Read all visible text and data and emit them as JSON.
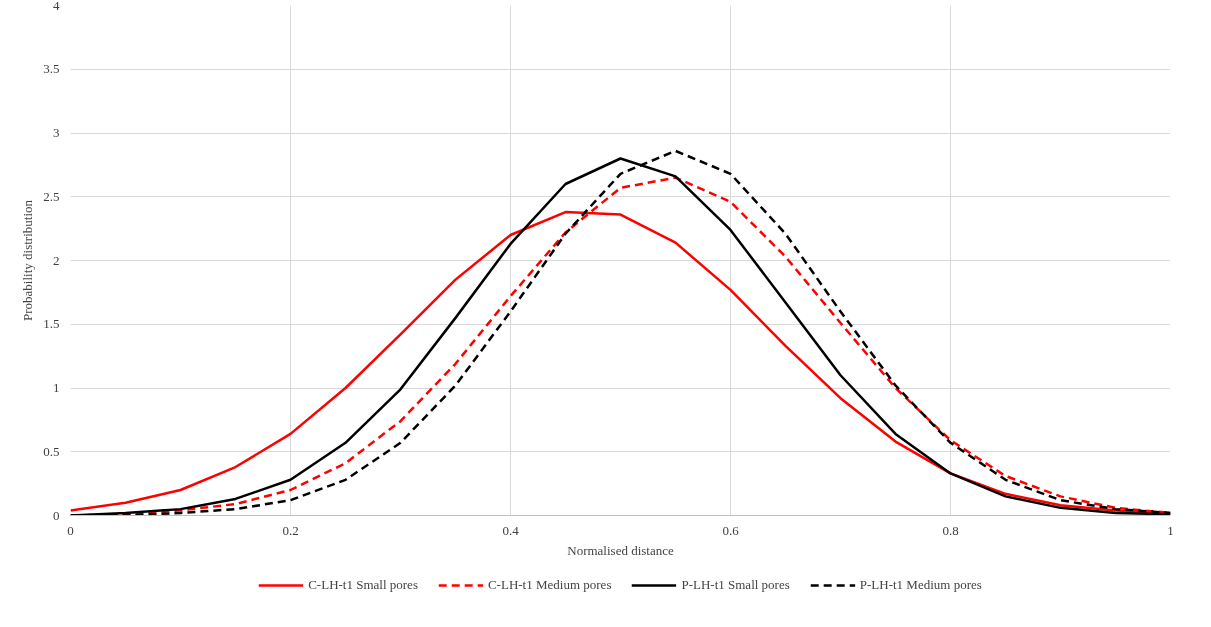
{
  "chart_data": {
    "type": "line",
    "xlabel": "Normalised distance",
    "ylabel": "Probability distribution",
    "x": [
      0,
      0.05,
      0.1,
      0.15,
      0.2,
      0.25,
      0.3,
      0.35,
      0.4,
      0.45,
      0.5,
      0.55,
      0.6,
      0.65,
      0.7,
      0.75,
      0.8,
      0.85,
      0.9,
      0.95,
      1
    ],
    "series": [
      {
        "name": "C-LH-t1 Small pores",
        "color": "#ff0000",
        "line_style": "solid",
        "values": [
          0.04,
          0.1,
          0.2,
          0.38,
          0.64,
          1.0,
          1.42,
          1.85,
          2.2,
          2.38,
          2.36,
          2.14,
          1.77,
          1.33,
          0.92,
          0.58,
          0.33,
          0.17,
          0.08,
          0.04,
          0.02
        ]
      },
      {
        "name": "C-LH-t1 Medium pores",
        "color": "#ff0000",
        "line_style": "dashed",
        "values": [
          0,
          0.01,
          0.04,
          0.09,
          0.2,
          0.41,
          0.74,
          1.19,
          1.72,
          2.22,
          2.57,
          2.65,
          2.46,
          2.03,
          1.51,
          1.0,
          0.59,
          0.31,
          0.15,
          0.06,
          0.02
        ]
      },
      {
        "name": "P-LH-t1 Small pores",
        "color": "#000000",
        "line_style": "solid",
        "values": [
          0,
          0.02,
          0.05,
          0.13,
          0.28,
          0.57,
          0.99,
          1.55,
          2.13,
          2.6,
          2.8,
          2.66,
          2.24,
          1.67,
          1.1,
          0.64,
          0.33,
          0.15,
          0.06,
          0.02,
          0.01
        ]
      },
      {
        "name": "P-LH-t1 Medium pores",
        "color": "#000000",
        "line_style": "dashed",
        "values": [
          0,
          0,
          0.02,
          0.05,
          0.12,
          0.28,
          0.57,
          1.02,
          1.6,
          2.21,
          2.68,
          2.86,
          2.68,
          2.21,
          1.6,
          1.02,
          0.57,
          0.28,
          0.12,
          0.05,
          0.02
        ]
      }
    ],
    "xlim": [
      0,
      1
    ],
    "ylim": [
      0,
      4
    ],
    "xticks": [
      0,
      0.2,
      0.4,
      0.6,
      0.8,
      1
    ],
    "yticks": [
      0,
      0.5,
      1,
      1.5,
      2,
      2.5,
      3,
      3.5,
      4
    ],
    "grid": true,
    "legend": "bottom",
    "marker": "none"
  }
}
